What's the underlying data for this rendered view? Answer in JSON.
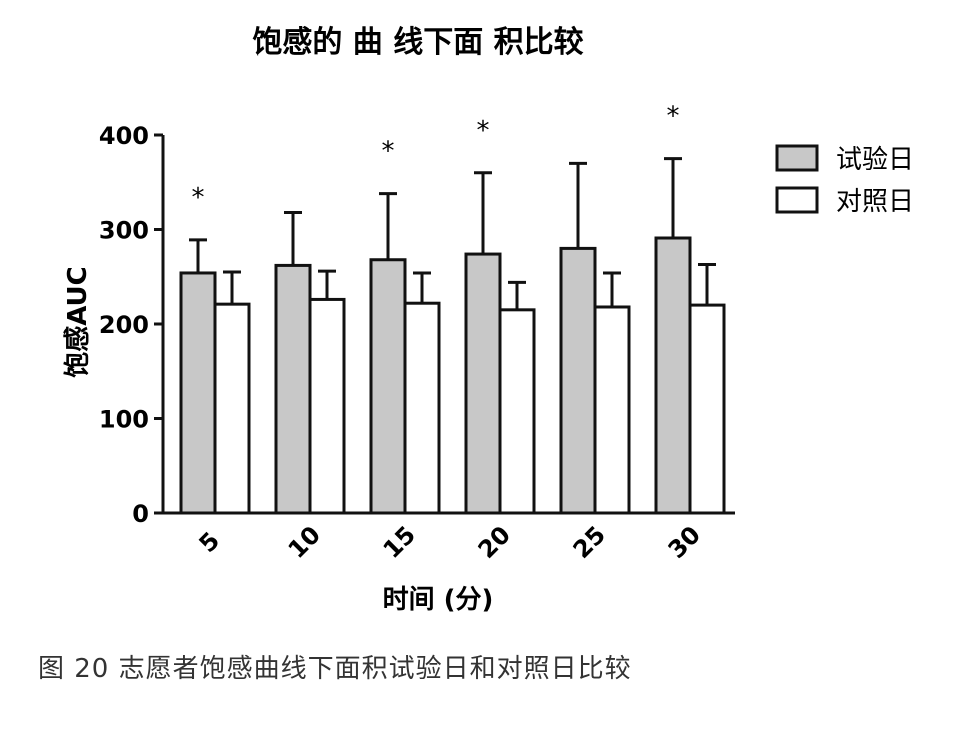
{
  "chart_data": {
    "type": "bar",
    "title": "饱感的 曲 线下面 积比较",
    "xlabel": "时间 (分)",
    "ylabel": "饱感AUC",
    "ylim": [
      0,
      400
    ],
    "yticks": [
      0,
      100,
      200,
      300,
      400
    ],
    "categories": [
      "5",
      "10",
      "15",
      "20",
      "25",
      "30"
    ],
    "series": [
      {
        "name": "试验日",
        "color": "#c8c8c8",
        "values": [
          254,
          262,
          268,
          274,
          280,
          291
        ],
        "errors": [
          35,
          56,
          70,
          86,
          90,
          84
        ]
      },
      {
        "name": "对照日",
        "color": "#ffffff",
        "values": [
          221,
          226,
          222,
          215,
          218,
          220
        ],
        "errors": [
          34,
          30,
          32,
          29,
          36,
          43
        ]
      }
    ],
    "significance": [
      "*",
      "",
      "*",
      "*",
      "",
      "*"
    ],
    "legend_position": "top-right"
  },
  "caption": "图 20 志愿者饱感曲线下面积试验日和对照日比较"
}
